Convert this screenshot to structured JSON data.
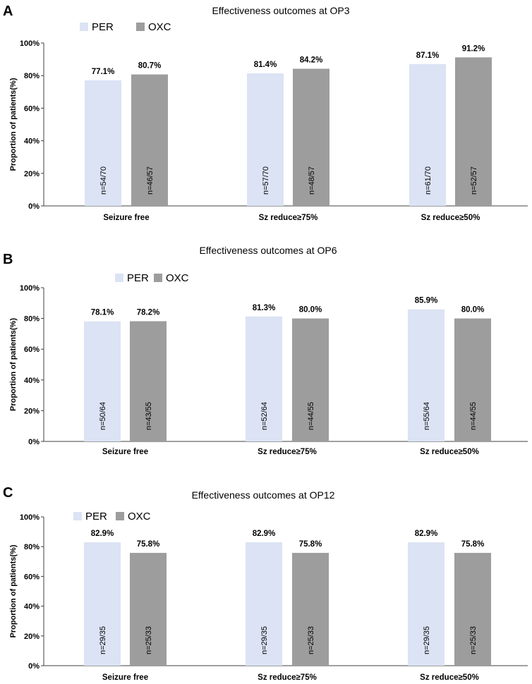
{
  "colors": {
    "per": "#dbe3f4",
    "oxc": "#9d9d9d",
    "axis": "#404040",
    "text": "#000000"
  },
  "chart_data": [
    {
      "type": "bar",
      "panel_label": "A",
      "title": "Effectiveness outcomes at OP3",
      "ylabel": "Proportion of patients(%)",
      "xlabel": "",
      "ylim": [
        0,
        100
      ],
      "yticks": [
        "0%",
        "20%",
        "40%",
        "60%",
        "80%",
        "100%"
      ],
      "categories": [
        "Seizure free",
        "Sz reduce≥75%",
        "Sz reduce≥50%"
      ],
      "series": [
        {
          "name": "PER",
          "values": [
            77.1,
            81.4,
            87.1
          ],
          "labels": [
            "77.1%",
            "81.4%",
            "87.1%"
          ],
          "n": [
            "n=54/70",
            "n=57/70",
            "n=61/70"
          ]
        },
        {
          "name": "OXC",
          "values": [
            80.7,
            84.2,
            91.2
          ],
          "labels": [
            "80.7%",
            "84.2%",
            "91.2%"
          ],
          "n": [
            "n=46/57",
            "n=48/57",
            "n=52/57"
          ]
        }
      ]
    },
    {
      "type": "bar",
      "panel_label": "B",
      "title": "Effectiveness outcomes at OP6",
      "ylabel": "Proportion of patients(%)",
      "xlabel": "",
      "ylim": [
        0,
        100
      ],
      "yticks": [
        "0%",
        "20%",
        "40%",
        "60%",
        "80%",
        "100%"
      ],
      "categories": [
        "Seizure free",
        "Sz reduce≥75%",
        "Sz reduce≥50%"
      ],
      "series": [
        {
          "name": "PER",
          "values": [
            78.1,
            81.3,
            85.9
          ],
          "labels": [
            "78.1%",
            "81.3%",
            "85.9%"
          ],
          "n": [
            "n=50/64",
            "n=52/64",
            "n=55/64"
          ]
        },
        {
          "name": "OXC",
          "values": [
            78.2,
            80.0,
            80.0
          ],
          "labels": [
            "78.2%",
            "80.0%",
            "80.0%"
          ],
          "n": [
            "n=43/55",
            "n=44/55",
            "n=44/55"
          ]
        }
      ]
    },
    {
      "type": "bar",
      "panel_label": "C",
      "title": "Effectiveness outcomes at OP12",
      "ylabel": "Proportion of patients(%)",
      "xlabel": "",
      "ylim": [
        0,
        100
      ],
      "yticks": [
        "0%",
        "20%",
        "40%",
        "60%",
        "80%",
        "100%"
      ],
      "categories": [
        "Seizure free",
        "Sz reduce≥75%",
        "Sz reduce≥50%"
      ],
      "series": [
        {
          "name": "PER",
          "values": [
            82.9,
            82.9,
            82.9
          ],
          "labels": [
            "82.9%",
            "82.9%",
            "82.9%"
          ],
          "n": [
            "n=29/35",
            "n=29/35",
            "n=29/35"
          ]
        },
        {
          "name": "OXC",
          "values": [
            75.8,
            75.8,
            75.8
          ],
          "labels": [
            "75.8%",
            "75.8%",
            "75.8%"
          ],
          "n": [
            "n=25/33",
            "n=25/33",
            "n=25/33"
          ]
        }
      ]
    }
  ]
}
